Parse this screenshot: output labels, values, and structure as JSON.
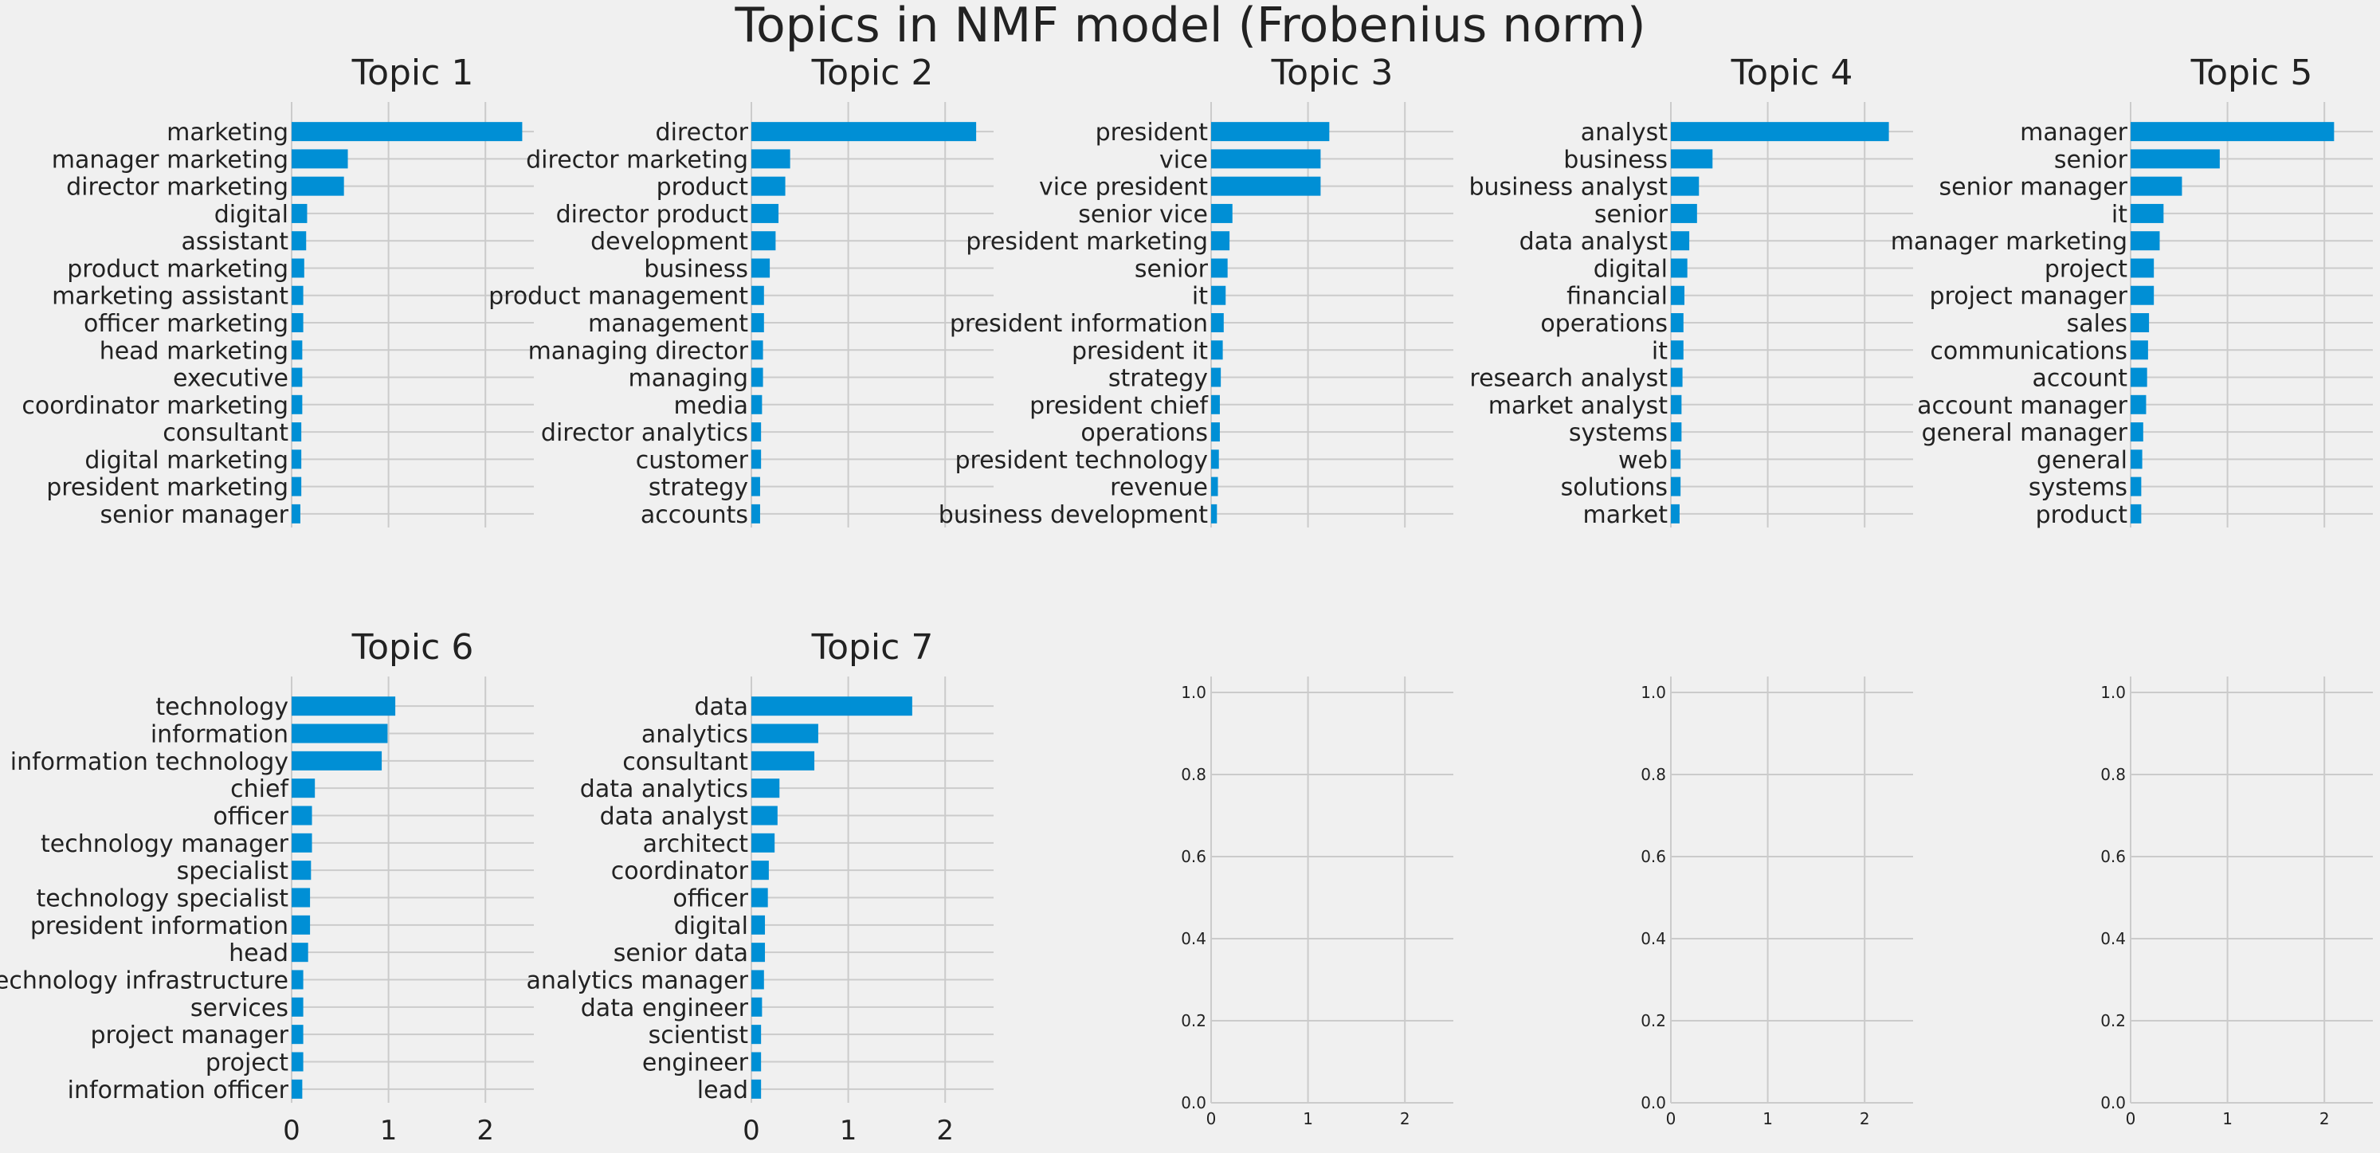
{
  "chart_data": {
    "type": "bar",
    "title": "Topics in NMF model (Frobenius norm)",
    "orientation": "horizontal",
    "xlim": [
      0,
      2.5
    ],
    "xticks": [
      0,
      1,
      2
    ],
    "grid": true,
    "bar_color": "#008fd5",
    "background": "#f0f0f0",
    "panels": [
      {
        "title": "Topic 1",
        "terms": [
          "marketing",
          "manager marketing",
          "director marketing",
          "digital",
          "assistant",
          "product marketing",
          "marketing assistant",
          "officer marketing",
          "head marketing",
          "executive",
          "coordinator marketing",
          "consultant",
          "digital marketing",
          "president marketing",
          "senior manager"
        ],
        "values": [
          2.38,
          0.58,
          0.54,
          0.16,
          0.15,
          0.13,
          0.12,
          0.12,
          0.11,
          0.11,
          0.11,
          0.1,
          0.1,
          0.1,
          0.09
        ]
      },
      {
        "title": "Topic 2",
        "terms": [
          "director",
          "director marketing",
          "product",
          "director product",
          "development",
          "business",
          "product management",
          "management",
          "managing director",
          "managing",
          "media",
          "director analytics",
          "customer",
          "strategy",
          "accounts"
        ],
        "values": [
          2.32,
          0.4,
          0.35,
          0.28,
          0.25,
          0.19,
          0.13,
          0.13,
          0.12,
          0.12,
          0.11,
          0.1,
          0.1,
          0.09,
          0.09
        ]
      },
      {
        "title": "Topic 3",
        "terms": [
          "president",
          "vice",
          "vice president",
          "senior vice",
          "president marketing",
          "senior",
          "it",
          "president information",
          "president it",
          "strategy",
          "president chief",
          "operations",
          "president technology",
          "revenue",
          "business development"
        ],
        "values": [
          1.22,
          1.13,
          1.13,
          0.22,
          0.19,
          0.17,
          0.15,
          0.13,
          0.12,
          0.1,
          0.09,
          0.09,
          0.08,
          0.07,
          0.06
        ]
      },
      {
        "title": "Topic 4",
        "terms": [
          "analyst",
          "business",
          "business analyst",
          "senior",
          "data analyst",
          "digital",
          "financial",
          "operations",
          "it",
          "research analyst",
          "market analyst",
          "systems",
          "web",
          "solutions",
          "market"
        ],
        "values": [
          2.25,
          0.43,
          0.29,
          0.27,
          0.19,
          0.17,
          0.14,
          0.13,
          0.13,
          0.12,
          0.11,
          0.11,
          0.1,
          0.1,
          0.09
        ]
      },
      {
        "title": "Topic 5",
        "terms": [
          "manager",
          "senior",
          "senior manager",
          "it",
          "manager marketing",
          "project",
          "project manager",
          "sales",
          "communications",
          "account",
          "account manager",
          "general manager",
          "general",
          "systems",
          "product"
        ],
        "values": [
          2.1,
          0.92,
          0.53,
          0.34,
          0.3,
          0.24,
          0.24,
          0.19,
          0.18,
          0.17,
          0.16,
          0.13,
          0.12,
          0.11,
          0.11
        ]
      },
      {
        "title": "Topic 6",
        "terms": [
          "technology",
          "information",
          "information technology",
          "chief",
          "officer",
          "technology manager",
          "specialist",
          "technology specialist",
          "president information",
          "head",
          "technology infrastructure",
          "services",
          "project manager",
          "project",
          "information officer"
        ],
        "values": [
          1.07,
          0.99,
          0.93,
          0.24,
          0.21,
          0.21,
          0.2,
          0.19,
          0.19,
          0.17,
          0.12,
          0.12,
          0.12,
          0.12,
          0.11
        ]
      },
      {
        "title": "Topic 7",
        "terms": [
          "data",
          "analytics",
          "consultant",
          "data analytics",
          "data analyst",
          "architect",
          "coordinator",
          "officer",
          "digital",
          "senior data",
          "analytics manager",
          "data engineer",
          "scientist",
          "engineer",
          "lead"
        ],
        "values": [
          1.66,
          0.69,
          0.65,
          0.29,
          0.27,
          0.24,
          0.18,
          0.17,
          0.14,
          0.14,
          0.13,
          0.11,
          0.1,
          0.1,
          0.1
        ]
      }
    ],
    "empty_panels": [
      {
        "yticks": [
          "0.0",
          "0.2",
          "0.4",
          "0.6",
          "0.8",
          "1.0"
        ],
        "xticks": [
          0,
          1,
          2
        ]
      },
      {
        "yticks": [
          "0.0",
          "0.2",
          "0.4",
          "0.6",
          "0.8",
          "1.0"
        ],
        "xticks": [
          0,
          1,
          2
        ]
      },
      {
        "yticks": [
          "0.0",
          "0.2",
          "0.4",
          "0.6",
          "0.8",
          "1.0"
        ],
        "xticks": [
          0,
          1,
          2
        ]
      }
    ]
  }
}
